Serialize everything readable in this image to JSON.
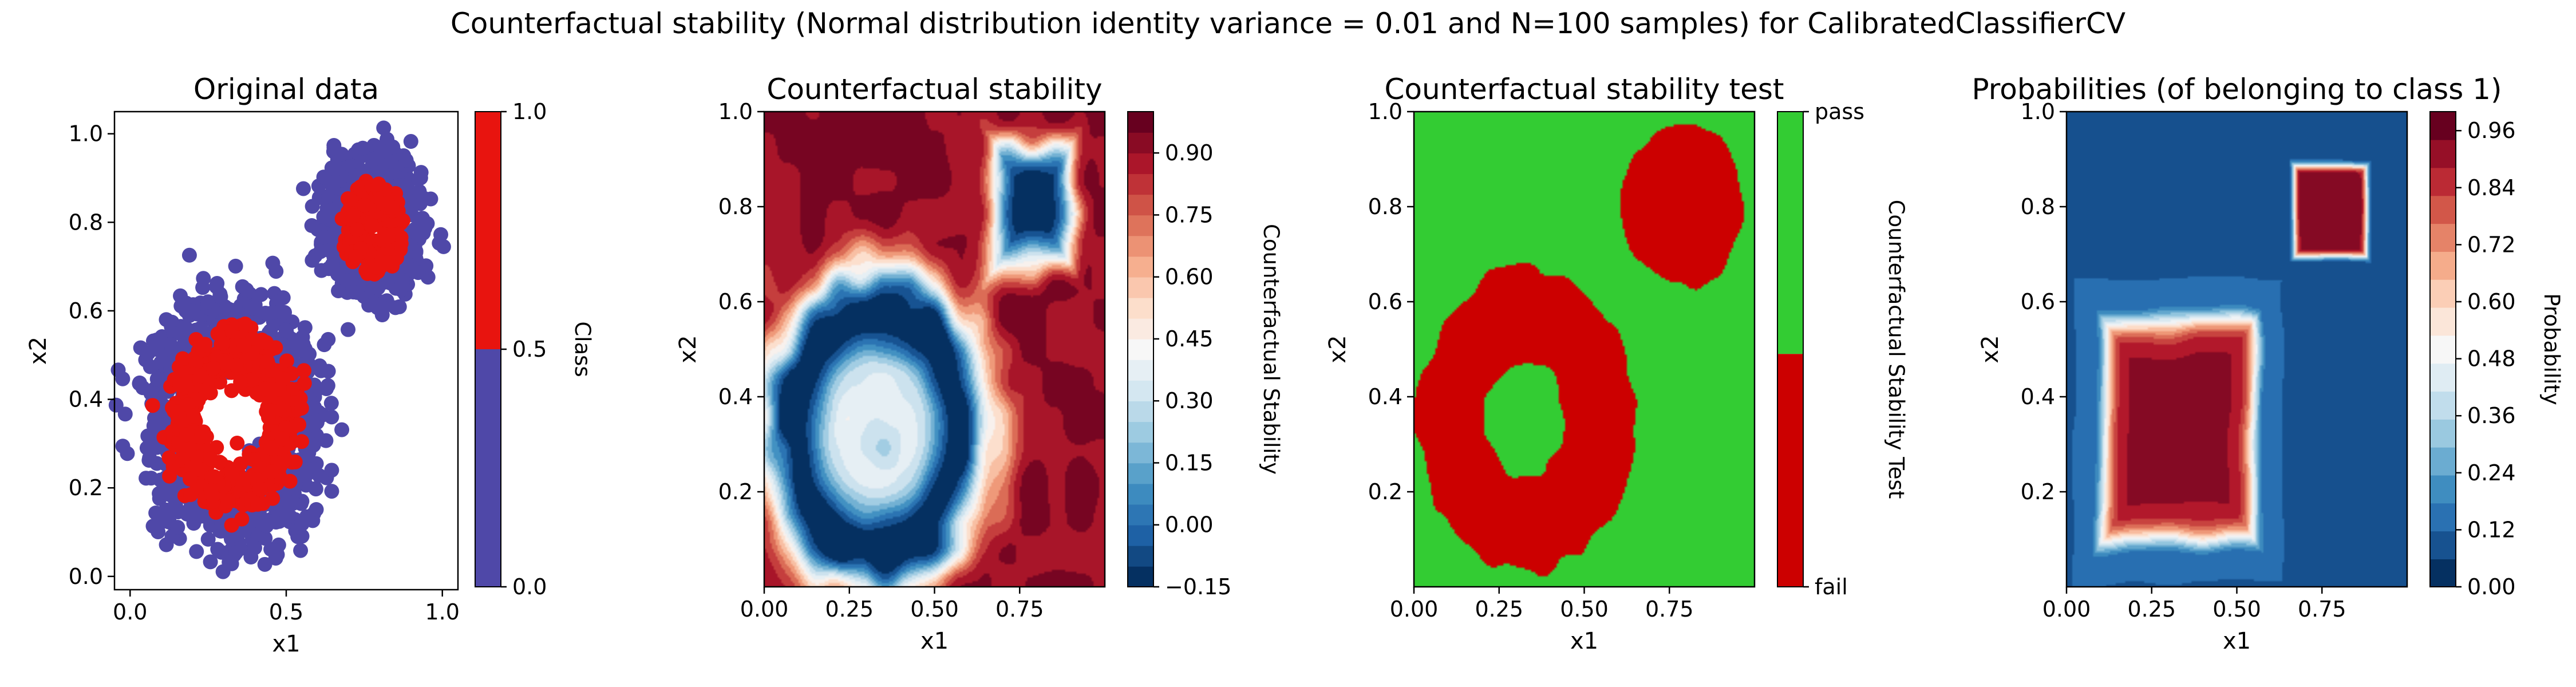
{
  "suptitle": "Counterfactual stability (Normal distribution identity variance = 0.01 and N=100 samples) for CalibratedClassifierCV",
  "colors": {
    "class0": "#4f48a8",
    "class1": "#e8140f",
    "pass": "#33cc33",
    "fail": "#cc0000",
    "rdbu": [
      "#053061",
      "#2166ac",
      "#4393c3",
      "#92c5de",
      "#d1e5f0",
      "#f7f7f7",
      "#fddbc7",
      "#f4a582",
      "#d6604d",
      "#b2182b",
      "#67001f"
    ]
  },
  "chart_data": [
    {
      "type": "scatter",
      "title": "Original data",
      "xlabel": "x1",
      "ylabel": "x2",
      "xlim": [
        -0.05,
        1.05
      ],
      "ylim": [
        -0.03,
        1.05
      ],
      "xticks": [
        "0.0",
        "0.5",
        "1.0"
      ],
      "yticks": [
        "0.0",
        "0.2",
        "0.4",
        "0.6",
        "0.8",
        "1.0"
      ],
      "series": [
        {
          "name": "0.0",
          "description": "outer band of class-0 points around two clusters",
          "ring_centers": [
            [
              0.33,
              0.35
            ],
            [
              0.78,
              0.79
            ]
          ]
        },
        {
          "name": "1.0",
          "description": "inner ring / core of class-1 points",
          "ring_centers": [
            [
              0.33,
              0.35
            ],
            [
              0.78,
              0.79
            ]
          ]
        }
      ],
      "colorbar": {
        "label": "Class",
        "ticks": [
          "0.0",
          "0.5",
          "1.0"
        ]
      }
    },
    {
      "type": "heatmap",
      "title": "Counterfactual stability",
      "xlabel": "x1",
      "ylabel": "x2",
      "xlim": [
        0.0,
        1.0
      ],
      "ylim": [
        0.0,
        1.0
      ],
      "xticks": [
        "0.00",
        "0.25",
        "0.50",
        "0.75"
      ],
      "yticks": [
        "0.2",
        "0.4",
        "0.6",
        "0.8",
        "1.0"
      ],
      "value_range": [
        -0.15,
        1.0
      ],
      "colorbar": {
        "label": "Counterfactual Stability",
        "ticks": [
          "−0.15",
          "0.00",
          "0.15",
          "0.30",
          "0.45",
          "0.60",
          "0.75",
          "0.90"
        ]
      }
    },
    {
      "type": "heatmap",
      "title": "Counterfactual stability test",
      "xlabel": "x1",
      "ylabel": "x2",
      "xlim": [
        0.0,
        1.0
      ],
      "ylim": [
        0.0,
        1.0
      ],
      "xticks": [
        "0.00",
        "0.25",
        "0.50",
        "0.75"
      ],
      "yticks": [
        "0.2",
        "0.4",
        "0.6",
        "0.8",
        "1.0"
      ],
      "categories": [
        "fail",
        "pass"
      ],
      "colorbar": {
        "label": "Counterfactual Stability Test",
        "ticks": [
          "pass",
          "fail"
        ]
      }
    },
    {
      "type": "heatmap",
      "title": "Probabilities (of belonging to class 1)",
      "xlabel": "x1",
      "ylabel": "x2",
      "xlim": [
        0.0,
        1.0
      ],
      "ylim": [
        0.0,
        1.0
      ],
      "xticks": [
        "0.00",
        "0.25",
        "0.50",
        "0.75"
      ],
      "yticks": [
        "0.2",
        "0.4",
        "0.6",
        "0.8",
        "1.0"
      ],
      "value_range": [
        0.0,
        1.0
      ],
      "colorbar": {
        "label": "Probability",
        "ticks": [
          "0.00",
          "0.12",
          "0.24",
          "0.36",
          "0.48",
          "0.60",
          "0.72",
          "0.84",
          "0.96"
        ]
      }
    }
  ]
}
